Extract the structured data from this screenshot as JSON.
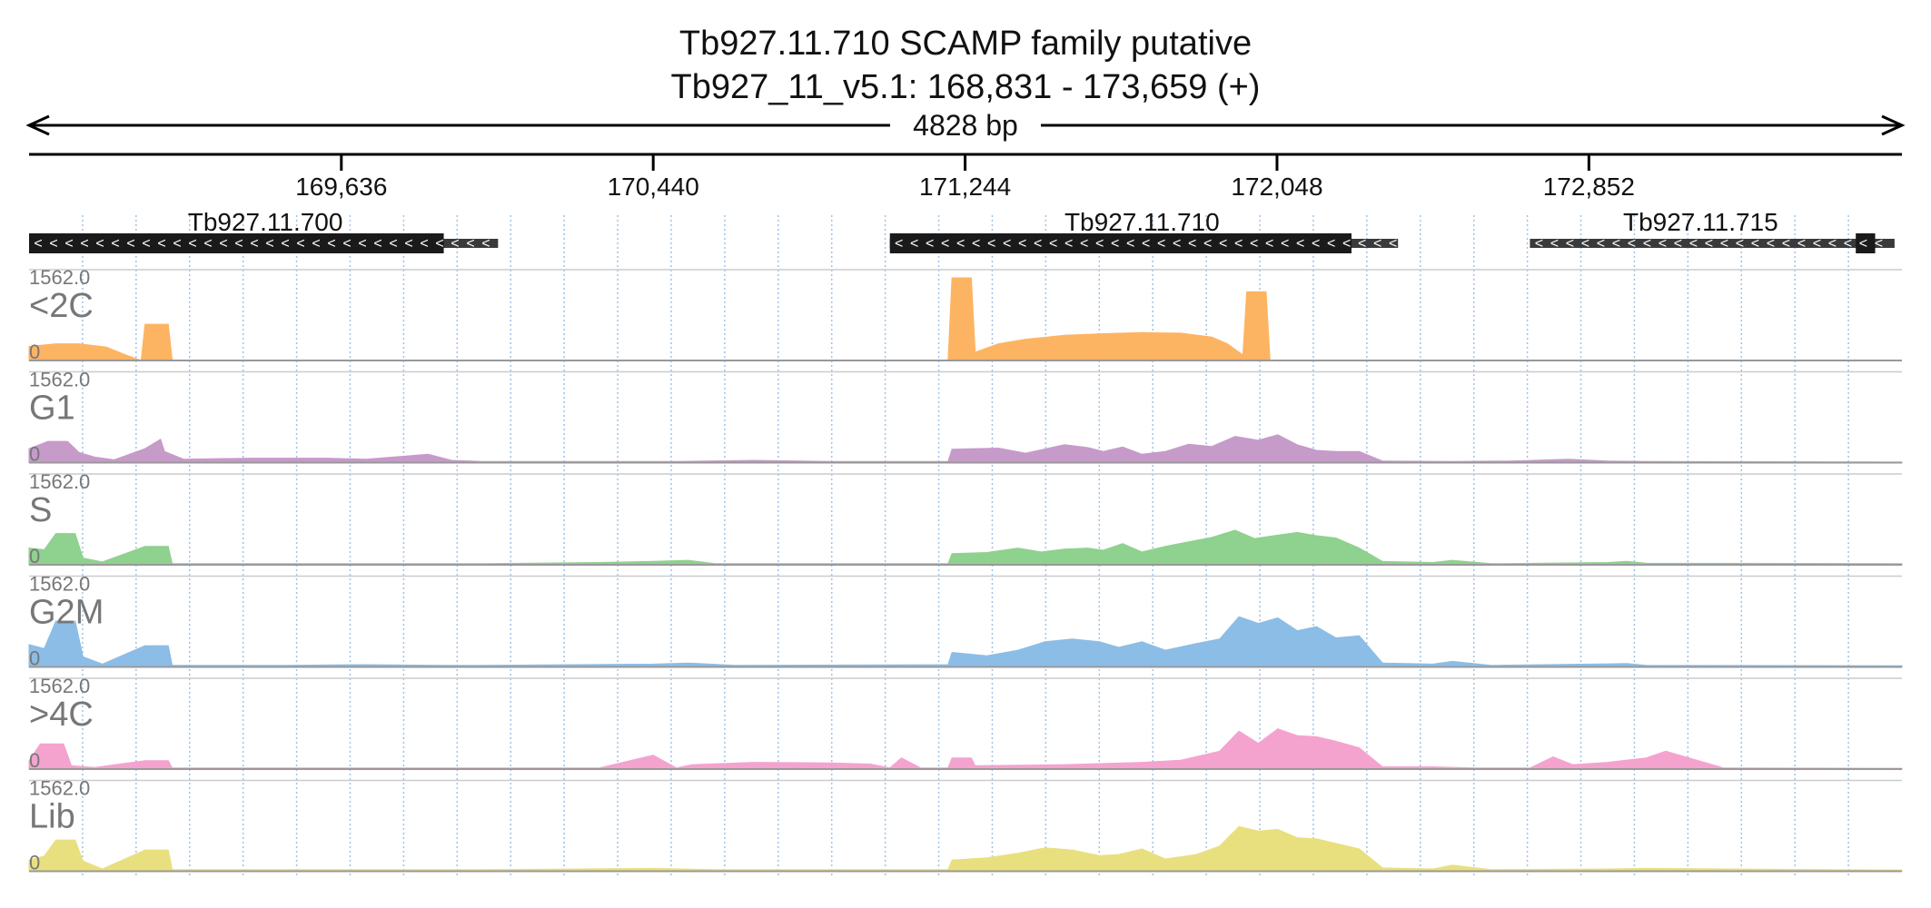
{
  "chart_data": {
    "type": "area",
    "title": "Tb927.11.710  SCAMP family  putative",
    "subtitle": "Tb927_11_v5.1: 168,831 - 173,659 (+)",
    "span_label": "4828 bp",
    "xlim": [
      168831,
      173659
    ],
    "ticks": [
      169636,
      170440,
      171244,
      172048,
      172852
    ],
    "tick_labels": [
      "169,636",
      "170,440",
      "171,244",
      "172,048",
      "172,852"
    ],
    "grid": true,
    "genes": [
      {
        "name": "Tb927.11.700",
        "strand": "-",
        "start": 168831,
        "end": 170040,
        "cds_start": 168831,
        "cds_end": 169900,
        "label_x": 169440
      },
      {
        "name": "Tb927.11.710",
        "strand": "-",
        "start": 171050,
        "end": 172360,
        "cds_start": 171050,
        "cds_end": 172240,
        "label_x": 171700
      },
      {
        "name": "Tb927.11.715",
        "strand": "-",
        "start": 172700,
        "end": 173640,
        "cds_start": 173540,
        "cds_end": 173590,
        "label_x": 173140
      }
    ],
    "ylim": [
      0,
      1562.0
    ],
    "ymax_label": "1562.0",
    "ymin_label": "0",
    "series": [
      {
        "name": "<2C",
        "color": "#fdb462",
        "points": [
          [
            168831,
            250
          ],
          [
            168900,
            300
          ],
          [
            168960,
            300
          ],
          [
            169030,
            240
          ],
          [
            169080,
            100
          ],
          [
            169120,
            0
          ],
          [
            169130,
            650
          ],
          [
            169190,
            650
          ],
          [
            169200,
            0
          ],
          [
            171200,
            0
          ],
          [
            171210,
            1480
          ],
          [
            171260,
            1480
          ],
          [
            171270,
            150
          ],
          [
            171330,
            300
          ],
          [
            171400,
            380
          ],
          [
            171500,
            450
          ],
          [
            171600,
            480
          ],
          [
            171700,
            500
          ],
          [
            171800,
            490
          ],
          [
            171880,
            420
          ],
          [
            171920,
            300
          ],
          [
            171960,
            100
          ],
          [
            171970,
            1230
          ],
          [
            172020,
            1230
          ],
          [
            172030,
            0
          ],
          [
            173659,
            0
          ]
        ]
      },
      {
        "name": "G1",
        "color": "#c69ac9",
        "points": [
          [
            168831,
            250
          ],
          [
            168880,
            380
          ],
          [
            168930,
            380
          ],
          [
            168960,
            180
          ],
          [
            169000,
            100
          ],
          [
            169050,
            50
          ],
          [
            169130,
            250
          ],
          [
            169170,
            420
          ],
          [
            169180,
            200
          ],
          [
            169230,
            60
          ],
          [
            169400,
            80
          ],
          [
            169600,
            80
          ],
          [
            169700,
            60
          ],
          [
            169860,
            150
          ],
          [
            169920,
            40
          ],
          [
            170000,
            20
          ],
          [
            170500,
            20
          ],
          [
            170700,
            40
          ],
          [
            170900,
            20
          ],
          [
            171200,
            20
          ],
          [
            171210,
            240
          ],
          [
            171330,
            260
          ],
          [
            171400,
            170
          ],
          [
            171500,
            320
          ],
          [
            171560,
            270
          ],
          [
            171600,
            200
          ],
          [
            171650,
            280
          ],
          [
            171700,
            150
          ],
          [
            171760,
            200
          ],
          [
            171820,
            330
          ],
          [
            171880,
            290
          ],
          [
            171940,
            470
          ],
          [
            172000,
            400
          ],
          [
            172050,
            500
          ],
          [
            172100,
            320
          ],
          [
            172150,
            220
          ],
          [
            172200,
            200
          ],
          [
            172260,
            200
          ],
          [
            172320,
            30
          ],
          [
            172500,
            20
          ],
          [
            172650,
            30
          ],
          [
            172800,
            60
          ],
          [
            172900,
            30
          ],
          [
            173000,
            20
          ],
          [
            173659,
            10
          ]
        ]
      },
      {
        "name": "S",
        "color": "#8fd18e",
        "points": [
          [
            168831,
            300
          ],
          [
            168870,
            270
          ],
          [
            168900,
            560
          ],
          [
            168950,
            560
          ],
          [
            168970,
            120
          ],
          [
            169020,
            50
          ],
          [
            169130,
            330
          ],
          [
            169190,
            330
          ],
          [
            169200,
            20
          ],
          [
            169500,
            20
          ],
          [
            170000,
            20
          ],
          [
            170300,
            40
          ],
          [
            170440,
            60
          ],
          [
            170530,
            80
          ],
          [
            170600,
            20
          ],
          [
            171200,
            20
          ],
          [
            171210,
            200
          ],
          [
            171300,
            220
          ],
          [
            171380,
            300
          ],
          [
            171440,
            230
          ],
          [
            171500,
            280
          ],
          [
            171560,
            300
          ],
          [
            171600,
            260
          ],
          [
            171650,
            380
          ],
          [
            171700,
            230
          ],
          [
            171760,
            330
          ],
          [
            171820,
            410
          ],
          [
            171880,
            490
          ],
          [
            171940,
            620
          ],
          [
            171990,
            470
          ],
          [
            172050,
            530
          ],
          [
            172100,
            580
          ],
          [
            172150,
            520
          ],
          [
            172200,
            480
          ],
          [
            172260,
            300
          ],
          [
            172320,
            60
          ],
          [
            172450,
            40
          ],
          [
            172500,
            80
          ],
          [
            172600,
            20
          ],
          [
            172900,
            40
          ],
          [
            172950,
            60
          ],
          [
            173000,
            30
          ],
          [
            173659,
            20
          ]
        ]
      },
      {
        "name": "G2M",
        "color": "#8bbde6",
        "points": [
          [
            168831,
            400
          ],
          [
            168870,
            330
          ],
          [
            168900,
            820
          ],
          [
            168950,
            820
          ],
          [
            168970,
            180
          ],
          [
            169020,
            50
          ],
          [
            169130,
            380
          ],
          [
            169190,
            380
          ],
          [
            169200,
            30
          ],
          [
            169500,
            30
          ],
          [
            169700,
            40
          ],
          [
            169900,
            30
          ],
          [
            170000,
            30
          ],
          [
            170440,
            50
          ],
          [
            170530,
            70
          ],
          [
            170650,
            30
          ],
          [
            171200,
            40
          ],
          [
            171210,
            260
          ],
          [
            171300,
            200
          ],
          [
            171380,
            300
          ],
          [
            171450,
            450
          ],
          [
            171520,
            500
          ],
          [
            171590,
            450
          ],
          [
            171640,
            350
          ],
          [
            171700,
            450
          ],
          [
            171760,
            300
          ],
          [
            171840,
            420
          ],
          [
            171900,
            500
          ],
          [
            171950,
            900
          ],
          [
            172000,
            780
          ],
          [
            172050,
            880
          ],
          [
            172100,
            650
          ],
          [
            172150,
            720
          ],
          [
            172200,
            520
          ],
          [
            172260,
            560
          ],
          [
            172320,
            70
          ],
          [
            172450,
            50
          ],
          [
            172500,
            100
          ],
          [
            172600,
            30
          ],
          [
            172950,
            60
          ],
          [
            173000,
            30
          ],
          [
            173659,
            20
          ]
        ]
      },
      {
        "name": ">4C",
        "color": "#f4a3cf",
        "points": [
          [
            168831,
            150
          ],
          [
            168860,
            450
          ],
          [
            168920,
            450
          ],
          [
            168940,
            60
          ],
          [
            169000,
            30
          ],
          [
            169130,
            150
          ],
          [
            169190,
            150
          ],
          [
            169200,
            20
          ],
          [
            169400,
            20
          ],
          [
            170000,
            20
          ],
          [
            170300,
            20
          ],
          [
            170440,
            250
          ],
          [
            170500,
            20
          ],
          [
            170540,
            80
          ],
          [
            170700,
            120
          ],
          [
            170900,
            110
          ],
          [
            171000,
            90
          ],
          [
            171050,
            20
          ],
          [
            171080,
            200
          ],
          [
            171130,
            20
          ],
          [
            171200,
            20
          ],
          [
            171210,
            200
          ],
          [
            171260,
            200
          ],
          [
            171270,
            60
          ],
          [
            171500,
            80
          ],
          [
            171700,
            120
          ],
          [
            171800,
            160
          ],
          [
            171900,
            320
          ],
          [
            171950,
            680
          ],
          [
            172000,
            460
          ],
          [
            172050,
            720
          ],
          [
            172100,
            600
          ],
          [
            172150,
            580
          ],
          [
            172200,
            500
          ],
          [
            172260,
            380
          ],
          [
            172320,
            40
          ],
          [
            172450,
            40
          ],
          [
            172560,
            20
          ],
          [
            172700,
            20
          ],
          [
            172760,
            220
          ],
          [
            172810,
            80
          ],
          [
            172900,
            120
          ],
          [
            173000,
            200
          ],
          [
            173050,
            320
          ],
          [
            173100,
            220
          ],
          [
            173150,
            120
          ],
          [
            173200,
            20
          ],
          [
            173659,
            15
          ]
        ]
      },
      {
        "name": "Lib",
        "color": "#e8e07f",
        "points": [
          [
            168831,
            200
          ],
          [
            168870,
            270
          ],
          [
            168900,
            560
          ],
          [
            168950,
            560
          ],
          [
            168970,
            180
          ],
          [
            169020,
            40
          ],
          [
            169130,
            380
          ],
          [
            169190,
            380
          ],
          [
            169200,
            30
          ],
          [
            169500,
            30
          ],
          [
            170000,
            30
          ],
          [
            170440,
            50
          ],
          [
            170600,
            30
          ],
          [
            171200,
            30
          ],
          [
            171210,
            200
          ],
          [
            171300,
            240
          ],
          [
            171380,
            320
          ],
          [
            171450,
            420
          ],
          [
            171520,
            380
          ],
          [
            171590,
            280
          ],
          [
            171640,
            300
          ],
          [
            171700,
            400
          ],
          [
            171760,
            220
          ],
          [
            171840,
            300
          ],
          [
            171900,
            450
          ],
          [
            171950,
            800
          ],
          [
            172000,
            720
          ],
          [
            172050,
            750
          ],
          [
            172100,
            600
          ],
          [
            172150,
            580
          ],
          [
            172200,
            500
          ],
          [
            172260,
            400
          ],
          [
            172320,
            60
          ],
          [
            172450,
            40
          ],
          [
            172500,
            110
          ],
          [
            172600,
            30
          ],
          [
            172900,
            40
          ],
          [
            173000,
            50
          ],
          [
            173659,
            20
          ]
        ]
      }
    ]
  }
}
